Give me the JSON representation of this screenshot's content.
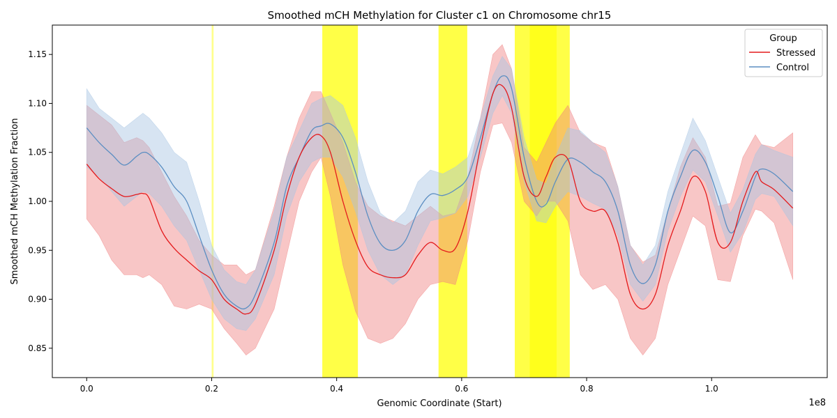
{
  "chart_data": {
    "type": "line",
    "title": "Smoothed mCH Methylation for Cluster c1 on Chromosome chr15",
    "xlabel": "Genomic Coordinate (Start)",
    "ylabel": "Smoothed mCH Methylation Fraction",
    "x_offset_label": "1e8",
    "xlim": [
      -0.055,
      1.185
    ],
    "ylim": [
      0.82,
      1.18
    ],
    "xticks": [
      {
        "value": 0.0,
        "label": "0.0"
      },
      {
        "value": 0.2,
        "label": "0.2"
      },
      {
        "value": 0.4,
        "label": "0.4"
      },
      {
        "value": 0.6,
        "label": "0.6"
      },
      {
        "value": 0.8,
        "label": "0.8"
      },
      {
        "value": 1.0,
        "label": "1.0"
      }
    ],
    "yticks": [
      {
        "value": 0.85,
        "label": "0.85"
      },
      {
        "value": 0.9,
        "label": "0.90"
      },
      {
        "value": 0.95,
        "label": "0.95"
      },
      {
        "value": 1.0,
        "label": "1.00"
      },
      {
        "value": 1.05,
        "label": "1.05"
      },
      {
        "value": 1.1,
        "label": "1.10"
      },
      {
        "value": 1.15,
        "label": "1.15"
      }
    ],
    "grid": false,
    "legend": {
      "title": "Group",
      "placement": "top-right"
    },
    "highlight_color": "#ffff00",
    "highlights": [
      {
        "start": 0.2,
        "end": 0.203,
        "opacity": 0.45
      },
      {
        "start": 0.377,
        "end": 0.434,
        "opacity": 0.72
      },
      {
        "start": 0.563,
        "end": 0.609,
        "opacity": 0.72
      },
      {
        "start": 0.685,
        "end": 0.773,
        "opacity": 0.72
      },
      {
        "start": 0.709,
        "end": 0.752,
        "opacity": 0.6
      }
    ],
    "x": [
      0.0,
      0.02,
      0.04,
      0.06,
      0.08,
      0.09,
      0.1,
      0.12,
      0.14,
      0.16,
      0.18,
      0.2,
      0.22,
      0.24,
      0.255,
      0.27,
      0.3,
      0.32,
      0.34,
      0.36,
      0.375,
      0.39,
      0.41,
      0.43,
      0.45,
      0.47,
      0.49,
      0.51,
      0.53,
      0.55,
      0.57,
      0.59,
      0.61,
      0.63,
      0.65,
      0.665,
      0.68,
      0.7,
      0.72,
      0.735,
      0.75,
      0.77,
      0.79,
      0.81,
      0.83,
      0.85,
      0.87,
      0.89,
      0.91,
      0.93,
      0.95,
      0.97,
      0.99,
      1.01,
      1.03,
      1.05,
      1.07,
      1.08,
      1.1,
      1.13
    ],
    "series": [
      {
        "name": "Stressed",
        "color": "#e41a1c",
        "band_color": "#f08080",
        "values": [
          1.038,
          1.023,
          1.013,
          1.005,
          1.007,
          1.008,
          1.003,
          0.97,
          0.952,
          0.94,
          0.929,
          0.92,
          0.9,
          0.89,
          0.885,
          0.895,
          0.95,
          1.005,
          1.045,
          1.065,
          1.067,
          1.05,
          1.0,
          0.96,
          0.933,
          0.925,
          0.922,
          0.925,
          0.945,
          0.958,
          0.95,
          0.952,
          0.99,
          1.055,
          1.11,
          1.118,
          1.095,
          1.025,
          1.005,
          1.025,
          1.045,
          1.043,
          1.0,
          0.99,
          0.99,
          0.958,
          0.905,
          0.89,
          0.905,
          0.955,
          0.99,
          1.025,
          1.01,
          0.958,
          0.958,
          1.0,
          1.03,
          1.02,
          1.012,
          0.993
        ],
        "lower": [
          0.982,
          0.965,
          0.94,
          0.925,
          0.925,
          0.922,
          0.925,
          0.915,
          0.893,
          0.89,
          0.895,
          0.89,
          0.87,
          0.855,
          0.843,
          0.85,
          0.89,
          0.945,
          1.0,
          1.03,
          1.045,
          1.005,
          0.935,
          0.888,
          0.86,
          0.855,
          0.86,
          0.875,
          0.9,
          0.915,
          0.918,
          0.915,
          0.96,
          1.03,
          1.078,
          1.08,
          1.06,
          1.0,
          0.985,
          1.0,
          1.0,
          0.98,
          0.925,
          0.91,
          0.915,
          0.9,
          0.86,
          0.843,
          0.86,
          0.915,
          0.95,
          0.985,
          0.975,
          0.92,
          0.918,
          0.965,
          0.992,
          0.99,
          0.978,
          0.92
        ],
        "upper": [
          1.098,
          1.088,
          1.078,
          1.06,
          1.065,
          1.062,
          1.055,
          1.03,
          1.005,
          0.985,
          0.96,
          0.945,
          0.935,
          0.935,
          0.925,
          0.93,
          0.995,
          1.045,
          1.085,
          1.112,
          1.112,
          1.09,
          1.06,
          1.02,
          0.995,
          0.985,
          0.98,
          0.975,
          0.985,
          0.995,
          0.985,
          0.988,
          1.025,
          1.085,
          1.15,
          1.16,
          1.135,
          1.055,
          1.04,
          1.06,
          1.08,
          1.098,
          1.07,
          1.06,
          1.055,
          1.015,
          0.955,
          0.938,
          0.945,
          0.99,
          1.035,
          1.065,
          1.045,
          0.995,
          0.998,
          1.045,
          1.068,
          1.058,
          1.055,
          1.07
        ]
      },
      {
        "name": "Control",
        "color": "#5b8ec2",
        "band_color": "#a6c4e2",
        "values": [
          1.075,
          1.06,
          1.048,
          1.037,
          1.046,
          1.05,
          1.048,
          1.035,
          1.015,
          1.0,
          0.965,
          0.93,
          0.905,
          0.893,
          0.891,
          0.905,
          0.958,
          1.015,
          1.045,
          1.072,
          1.077,
          1.079,
          1.065,
          1.03,
          0.985,
          0.957,
          0.95,
          0.96,
          0.99,
          1.007,
          1.006,
          1.012,
          1.025,
          1.065,
          1.11,
          1.128,
          1.115,
          1.045,
          1.0,
          0.997,
          1.02,
          1.043,
          1.04,
          1.03,
          1.02,
          0.99,
          0.935,
          0.916,
          0.935,
          0.99,
          1.025,
          1.052,
          1.04,
          1.005,
          0.968,
          0.99,
          1.025,
          1.033,
          1.028,
          1.01
        ],
        "lower": [
          1.035,
          1.025,
          1.01,
          0.995,
          1.005,
          1.01,
          1.008,
          0.995,
          0.975,
          0.96,
          0.93,
          0.9,
          0.88,
          0.87,
          0.868,
          0.88,
          0.925,
          0.985,
          1.02,
          1.04,
          1.045,
          1.045,
          1.025,
          0.99,
          0.95,
          0.925,
          0.915,
          0.925,
          0.955,
          0.98,
          0.983,
          0.988,
          1.005,
          1.045,
          1.09,
          1.108,
          1.09,
          1.02,
          0.98,
          0.978,
          0.995,
          1.01,
          1.005,
          0.998,
          0.992,
          0.965,
          0.915,
          0.898,
          0.915,
          0.97,
          1.005,
          1.032,
          1.02,
          0.985,
          0.948,
          0.968,
          1.002,
          1.008,
          1.005,
          0.975
        ],
        "upper": [
          1.115,
          1.095,
          1.085,
          1.075,
          1.085,
          1.09,
          1.085,
          1.07,
          1.05,
          1.04,
          1.0,
          0.955,
          0.93,
          0.918,
          0.915,
          0.93,
          0.99,
          1.045,
          1.072,
          1.1,
          1.105,
          1.108,
          1.098,
          1.065,
          1.02,
          0.988,
          0.978,
          0.99,
          1.02,
          1.032,
          1.028,
          1.035,
          1.045,
          1.085,
          1.128,
          1.148,
          1.135,
          1.065,
          1.022,
          1.018,
          1.045,
          1.075,
          1.072,
          1.06,
          1.05,
          1.015,
          0.955,
          0.935,
          0.955,
          1.01,
          1.048,
          1.085,
          1.062,
          1.025,
          0.988,
          1.012,
          1.048,
          1.058,
          1.052,
          1.045
        ]
      }
    ]
  }
}
